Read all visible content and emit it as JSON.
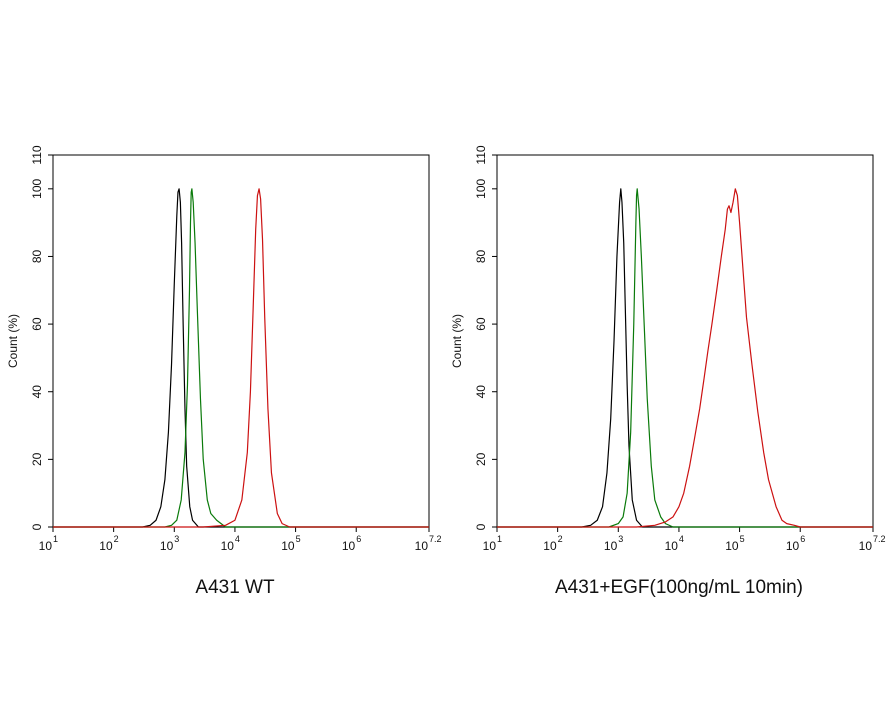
{
  "chart_data": [
    {
      "type": "line",
      "title": "A431 WT",
      "ylabel": "Count  (%)",
      "x_scale": "log10",
      "xlim": [
        10,
        15848931.92
      ],
      "x_tick_labels": [
        {
          "base": "10",
          "exp": "1"
        },
        {
          "base": "10",
          "exp": "2"
        },
        {
          "base": "10",
          "exp": "3"
        },
        {
          "base": "10",
          "exp": "4"
        },
        {
          "base": "10",
          "exp": "5"
        },
        {
          "base": "10",
          "exp": "6"
        },
        {
          "base": "10",
          "exp": "7.2"
        }
      ],
      "ylim": [
        0,
        110
      ],
      "y_ticks": [
        0,
        20,
        40,
        60,
        80,
        100,
        110
      ],
      "grid": false,
      "legend": "none",
      "series": [
        {
          "color": "#000000",
          "x": [
            10,
            300,
            400,
            500,
            600,
            700,
            800,
            900,
            1000,
            1100,
            1150,
            1200,
            1260,
            1320,
            1400,
            1500,
            1600,
            1800,
            2000,
            2500,
            15848931.92
          ],
          "y": [
            0,
            0,
            0.5,
            2,
            6,
            14,
            28,
            48,
            72,
            92,
            99,
            100,
            96,
            84,
            60,
            35,
            18,
            6,
            2,
            0,
            0
          ]
        },
        {
          "color": "#0a7a0a",
          "x": [
            10,
            700,
            900,
            1100,
            1300,
            1500,
            1650,
            1780,
            1850,
            1900,
            1950,
            2050,
            2200,
            2400,
            2700,
            3000,
            3500,
            4000,
            5000,
            7000,
            15848931.92
          ],
          "y": [
            0,
            0,
            0.5,
            2,
            8,
            22,
            42,
            70,
            90,
            99,
            100,
            96,
            84,
            64,
            38,
            20,
            8,
            4,
            2,
            0,
            0
          ]
        },
        {
          "color": "#cc1111",
          "x": [
            10,
            1000,
            3000,
            7000,
            10000,
            13000,
            16000,
            18000,
            20000,
            22000,
            23500,
            25000,
            26500,
            28500,
            31000,
            35000,
            40000,
            50000,
            60000,
            80000,
            15848931.92
          ],
          "y": [
            0,
            0,
            0,
            0.5,
            2,
            8,
            22,
            40,
            65,
            88,
            98,
            100,
            97,
            85,
            62,
            35,
            16,
            4,
            1,
            0,
            0
          ]
        }
      ]
    },
    {
      "type": "line",
      "title": "A431+EGF(100ng/mL 10min)",
      "ylabel": "Count  (%)",
      "x_scale": "log10",
      "xlim": [
        10,
        15848931.92
      ],
      "x_tick_labels": [
        {
          "base": "10",
          "exp": "1"
        },
        {
          "base": "10",
          "exp": "2"
        },
        {
          "base": "10",
          "exp": "3"
        },
        {
          "base": "10",
          "exp": "4"
        },
        {
          "base": "10",
          "exp": "5"
        },
        {
          "base": "10",
          "exp": "6"
        },
        {
          "base": "10",
          "exp": "7.2"
        }
      ],
      "ylim": [
        0,
        110
      ],
      "y_ticks": [
        0,
        20,
        40,
        60,
        80,
        100,
        110
      ],
      "grid": false,
      "legend": "none",
      "series": [
        {
          "color": "#000000",
          "x": [
            10,
            250,
            350,
            450,
            550,
            650,
            750,
            850,
            950,
            1050,
            1100,
            1150,
            1230,
            1300,
            1400,
            1500,
            1700,
            2000,
            2500,
            15848931.92
          ],
          "y": [
            0,
            0,
            0.5,
            2,
            6,
            16,
            32,
            55,
            80,
            96,
            100,
            96,
            84,
            66,
            42,
            24,
            8,
            2,
            0,
            0
          ]
        },
        {
          "color": "#0a7a0a",
          "x": [
            10,
            700,
            1000,
            1200,
            1400,
            1600,
            1800,
            1950,
            2000,
            2050,
            2200,
            2400,
            2700,
            3000,
            3500,
            4000,
            5000,
            6000,
            8000,
            15848931.92
          ],
          "y": [
            0,
            0,
            1,
            3,
            10,
            28,
            60,
            90,
            98,
            100,
            94,
            80,
            58,
            38,
            18,
            8,
            3,
            1,
            0,
            0
          ]
        },
        {
          "color": "#cc1111",
          "x": [
            10,
            2000,
            4000,
            6000,
            8000,
            10000,
            12000,
            15000,
            18000,
            22000,
            26000,
            30000,
            35000,
            42000,
            50000,
            58000,
            63000,
            67000,
            72000,
            78000,
            85000,
            92000,
            100000,
            115000,
            130000,
            160000,
            200000,
            250000,
            300000,
            400000,
            500000,
            600000,
            800000,
            1000000,
            15848931.92
          ],
          "y": [
            0,
            0,
            0.5,
            1.5,
            3,
            6,
            10,
            18,
            26,
            35,
            44,
            52,
            60,
            70,
            80,
            88,
            94,
            95,
            93,
            96,
            100,
            98,
            90,
            75,
            62,
            48,
            34,
            22,
            14,
            6,
            2,
            1,
            0.5,
            0,
            0
          ]
        }
      ]
    }
  ]
}
